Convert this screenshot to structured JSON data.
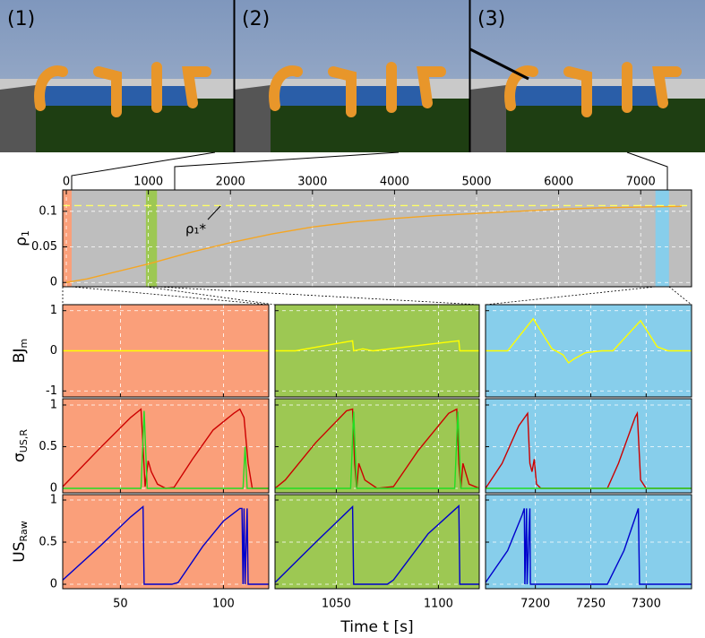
{
  "snapshots": {
    "labels": [
      "(1)",
      "(2)",
      "(3)"
    ]
  },
  "chart_data": [
    {
      "type": "line",
      "ylabel": "ρ",
      "ylabel_sub": "1",
      "xlim": [
        -44,
        7620
      ],
      "xticks": [
        0,
        1000,
        2000,
        3000,
        4000,
        5000,
        6000,
        7000
      ],
      "ylim": [
        -0.006,
        0.13
      ],
      "yticks": [
        0,
        0.05,
        0.1
      ],
      "grid": true,
      "background": "#bebebe",
      "series": [
        {
          "color": "#f5a623",
          "x": [
            0,
            250,
            500,
            1000,
            1500,
            2000,
            2500,
            3000,
            3500,
            4000,
            4500,
            5000,
            5500,
            6000,
            6500,
            7000,
            7500
          ],
          "values": [
            0,
            0.005,
            0.012,
            0.026,
            0.042,
            0.056,
            0.068,
            0.078,
            0.085,
            0.09,
            0.094,
            0.097,
            0.1,
            0.103,
            0.105,
            0.106,
            0.107
          ]
        }
      ],
      "threshold": {
        "value": 0.108,
        "label": "ρ₁*",
        "color": "#ffff66"
      },
      "regions": [
        {
          "start": -44,
          "end": 65,
          "color": "#fa9f7a"
        },
        {
          "start": 970,
          "end": 1105,
          "color": "#9dc853"
        },
        {
          "start": 7180,
          "end": 7345,
          "color": "#87ceeb"
        }
      ]
    },
    {
      "type": "panel",
      "xlim": [
        22,
        122
      ],
      "xticks": [
        50,
        100
      ],
      "background": "#fa9f7a",
      "rows": [
        {
          "ylabel": "BJ",
          "ylabel_sub": "m",
          "ylim": [
            -1.15,
            1.15
          ],
          "yticks": [
            -1,
            0,
            1
          ],
          "series": [
            {
              "color": "#ffff00",
              "x": [
                22,
                70,
                122
              ],
              "values": [
                0,
                0,
                0
              ]
            }
          ]
        },
        {
          "ylabel": "σ",
          "ylabel_sub": "US,R",
          "ylim": [
            -0.054,
            1.075
          ],
          "yticks": [
            0,
            0.5,
            1
          ],
          "series": [
            {
              "color": "#cc0000",
              "x": [
                22,
                40,
                55,
                60,
                61,
                62,
                63.5,
                65,
                68,
                72,
                76,
                85,
                95,
                105,
                108,
                110,
                112,
                114,
                122
              ],
              "values": [
                0.02,
                0.48,
                0.85,
                0.95,
                0.5,
                0.02,
                0.33,
                0.2,
                0.05,
                0,
                0.01,
                0.35,
                0.7,
                0.9,
                0.95,
                0.85,
                0.3,
                0,
                0
              ]
            },
            {
              "color": "#22dd22",
              "x": [
                22,
                60,
                61.5,
                63,
                109.5,
                110.5,
                111.5,
                122
              ],
              "values": [
                0,
                0,
                0.93,
                0,
                0,
                0.5,
                0,
                0
              ]
            }
          ]
        },
        {
          "ylabel": "US",
          "ylabel_sub": "Raw",
          "ylim": [
            -0.053,
            1.064
          ],
          "yticks": [
            0,
            0.5,
            1
          ],
          "series": [
            {
              "color": "#0000cc",
              "x": [
                22,
                40,
                55,
                61,
                61.5,
                75,
                78,
                90,
                100,
                108,
                109,
                109.5,
                110,
                110.5,
                111.5,
                112,
                122
              ],
              "values": [
                0.05,
                0.45,
                0.8,
                0.92,
                0,
                0,
                0.02,
                0.45,
                0.75,
                0.9,
                0.9,
                0,
                0.9,
                0,
                0.9,
                0,
                0
              ]
            }
          ]
        }
      ]
    },
    {
      "type": "panel",
      "xlim": [
        1020,
        1120
      ],
      "xticks": [
        1050,
        1100
      ],
      "background": "#9dc853",
      "xlabel": "Time t [s]",
      "rows": [
        {
          "ylim": [
            -1.15,
            1.15
          ],
          "yticks": [
            -1,
            0,
            1
          ],
          "series": [
            {
              "color": "#ffff00",
              "x": [
                1020,
                1030,
                1058,
                1058.5,
                1063,
                1068,
                1110,
                1110.5,
                1120
              ],
              "values": [
                0,
                0,
                0.25,
                0,
                0.05,
                0,
                0.25,
                0,
                0
              ]
            }
          ]
        },
        {
          "ylim": [
            -0.054,
            1.075
          ],
          "yticks": [
            0,
            0.5,
            1
          ],
          "series": [
            {
              "color": "#cc0000",
              "x": [
                1020,
                1025,
                1040,
                1055,
                1058,
                1059,
                1060,
                1061,
                1064,
                1070,
                1078,
                1090,
                1105,
                1109,
                1110,
                1111,
                1112,
                1115,
                1120
              ],
              "values": [
                0,
                0.1,
                0.55,
                0.93,
                0.95,
                0.3,
                0,
                0.3,
                0.1,
                0,
                0.02,
                0.45,
                0.9,
                0.95,
                0.3,
                0,
                0.3,
                0.05,
                0
              ]
            },
            {
              "color": "#22dd22",
              "x": [
                1020,
                1057,
                1058.5,
                1060,
                1108,
                1109.5,
                1111,
                1120
              ],
              "values": [
                0,
                0,
                0.92,
                0,
                0,
                0.92,
                0,
                0
              ]
            }
          ]
        },
        {
          "ylim": [
            -0.053,
            1.064
          ],
          "yticks": [
            0,
            0.5,
            1
          ],
          "series": [
            {
              "color": "#0000cc",
              "x": [
                1020,
                1040,
                1058,
                1058.5,
                1075,
                1078,
                1095,
                1110,
                1110.5,
                1120
              ],
              "values": [
                0.02,
                0.5,
                0.92,
                0,
                0,
                0.05,
                0.6,
                0.93,
                0,
                0
              ]
            }
          ]
        }
      ]
    },
    {
      "type": "panel",
      "xlim": [
        7155,
        7341
      ],
      "xticks": [
        7200,
        7250,
        7300
      ],
      "background": "#87ceeb",
      "rows": [
        {
          "ylim": [
            -1.15,
            1.15
          ],
          "yticks": [
            -1,
            0,
            1
          ],
          "series": [
            {
              "color": "#ffff00",
              "x": [
                7155,
                7175,
                7198,
                7215,
                7225,
                7230,
                7235,
                7245,
                7260,
                7270,
                7295,
                7310,
                7320,
                7341
              ],
              "values": [
                0,
                0,
                0.8,
                0.05,
                -0.1,
                -0.3,
                -0.2,
                -0.05,
                0,
                0,
                0.75,
                0.1,
                0,
                0
              ]
            }
          ]
        },
        {
          "ylim": [
            -0.054,
            1.075
          ],
          "yticks": [
            0,
            0.5,
            1
          ],
          "series": [
            {
              "color": "#cc0000",
              "x": [
                7155,
                7170,
                7185,
                7193,
                7195,
                7197,
                7199,
                7201,
                7205,
                7265,
                7275,
                7290,
                7292,
                7295,
                7300,
                7341
              ],
              "values": [
                0,
                0.3,
                0.75,
                0.9,
                0.3,
                0.2,
                0.35,
                0.05,
                0,
                0,
                0.3,
                0.85,
                0.9,
                0.1,
                0,
                0
              ]
            },
            {
              "color": "#22dd22",
              "x": [
                7155,
                7341
              ],
              "values": [
                0,
                0
              ]
            }
          ]
        },
        {
          "ylim": [
            -0.053,
            1.064
          ],
          "yticks": [
            0,
            0.5,
            1
          ],
          "series": [
            {
              "color": "#0000cc",
              "x": [
                7155,
                7175,
                7188,
                7190,
                7190.5,
                7192,
                7192.5,
                7195,
                7195.5,
                7265,
                7280,
                7293,
                7294,
                7341
              ],
              "values": [
                0.02,
                0.4,
                0.82,
                0.9,
                0,
                0.9,
                0,
                0.9,
                0,
                0,
                0.4,
                0.9,
                0,
                0
              ]
            }
          ]
        }
      ]
    }
  ]
}
